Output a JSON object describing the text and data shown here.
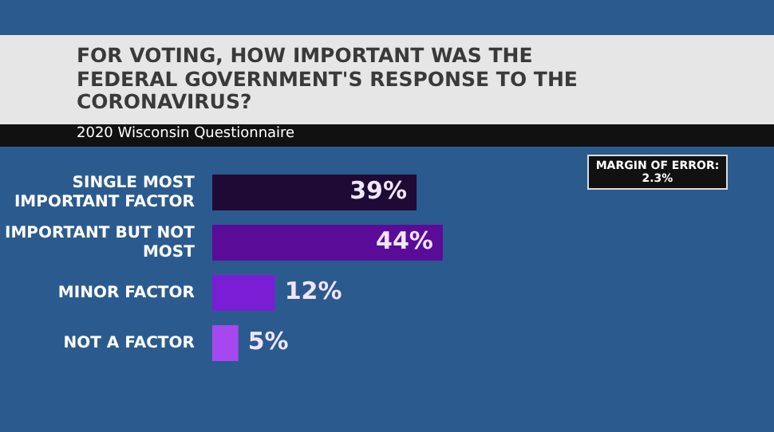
{
  "chart_data": {
    "type": "bar",
    "orientation": "horizontal",
    "title": "FOR VOTING, HOW IMPORTANT WAS THE FEDERAL GOVERNMENT'S RESPONSE TO THE CORONAVIRUS?",
    "subtitle": "2020 Wisconsin Questionnaire",
    "annotations": [
      "MARGIN OF ERROR: 2.3%"
    ],
    "categories": [
      "SINGLE MOST IMPORTANT FACTOR",
      "IMPORTANT BUT NOT MOST",
      "MINOR FACTOR",
      "NOT A FACTOR"
    ],
    "values": [
      39,
      44,
      12,
      5
    ],
    "value_labels": [
      "39%",
      "44%",
      "12%",
      "5%"
    ],
    "colors": [
      "#1e0a35",
      "#5a0c99",
      "#7a1ed6",
      "#a648f0"
    ],
    "legend": false
  }
}
